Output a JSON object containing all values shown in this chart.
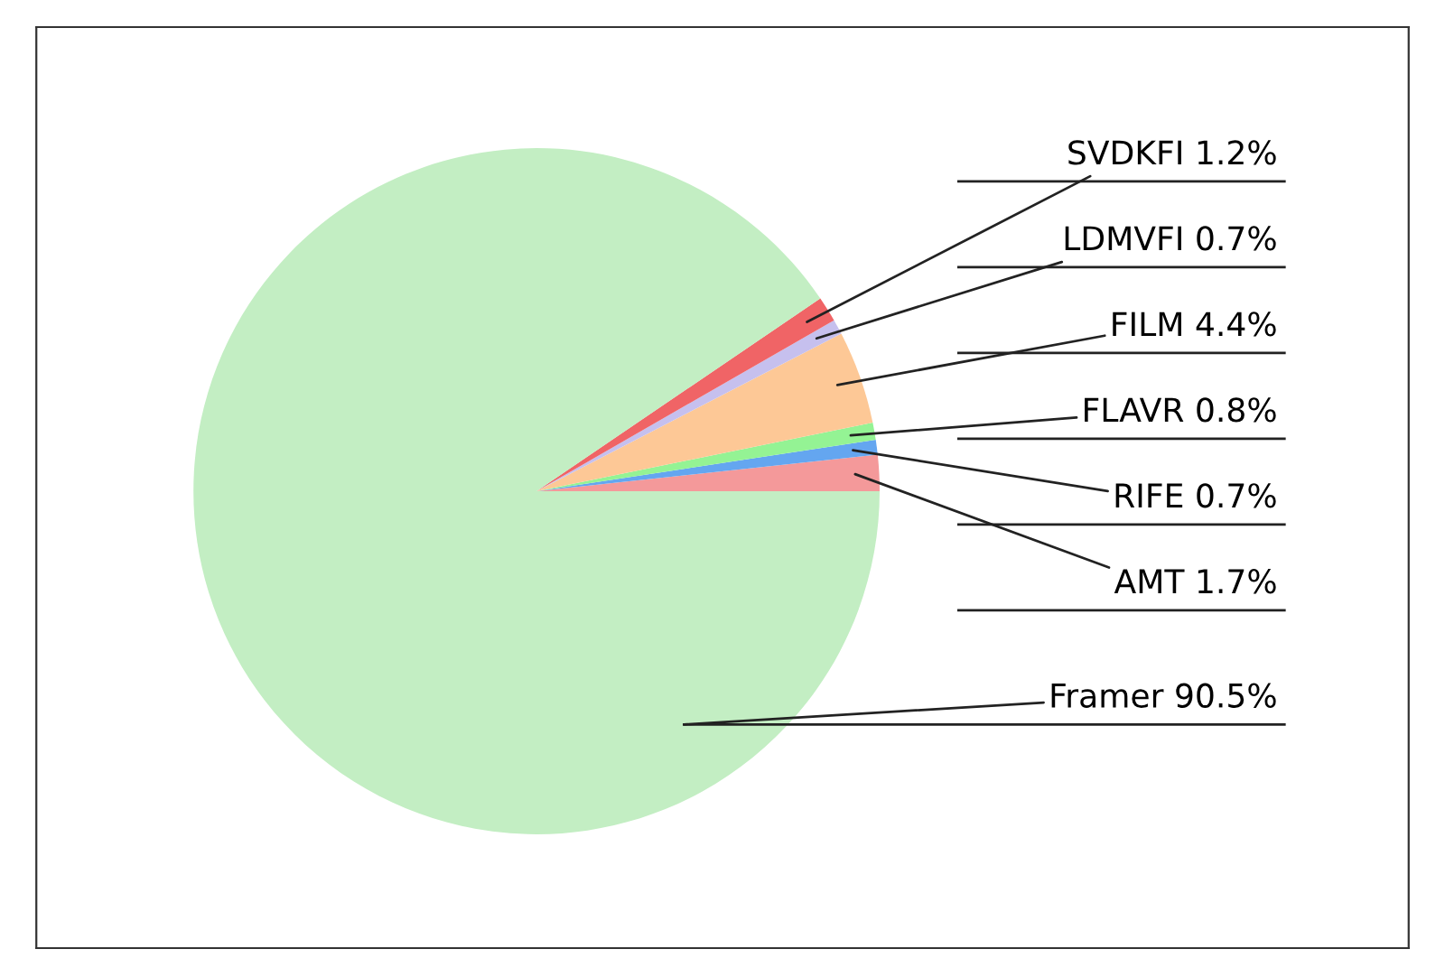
{
  "chart_data": {
    "type": "pie",
    "categories": [
      "AMT",
      "RIFE",
      "FLAVR",
      "FILM",
      "LDMVFI",
      "SVDKFI",
      "Framer"
    ],
    "values": [
      1.7,
      0.7,
      0.8,
      4.4,
      0.7,
      1.2,
      90.5
    ],
    "colors": [
      "#f4999a",
      "#64a6f0",
      "#94f394",
      "#fdc896",
      "#c6c0ee",
      "#f06466",
      "#c3eec3"
    ],
    "value_labels": [
      "1.7%",
      "0.7%",
      "0.8%",
      "4.4%",
      "0.7%",
      "1.2%",
      "90.5%"
    ]
  }
}
